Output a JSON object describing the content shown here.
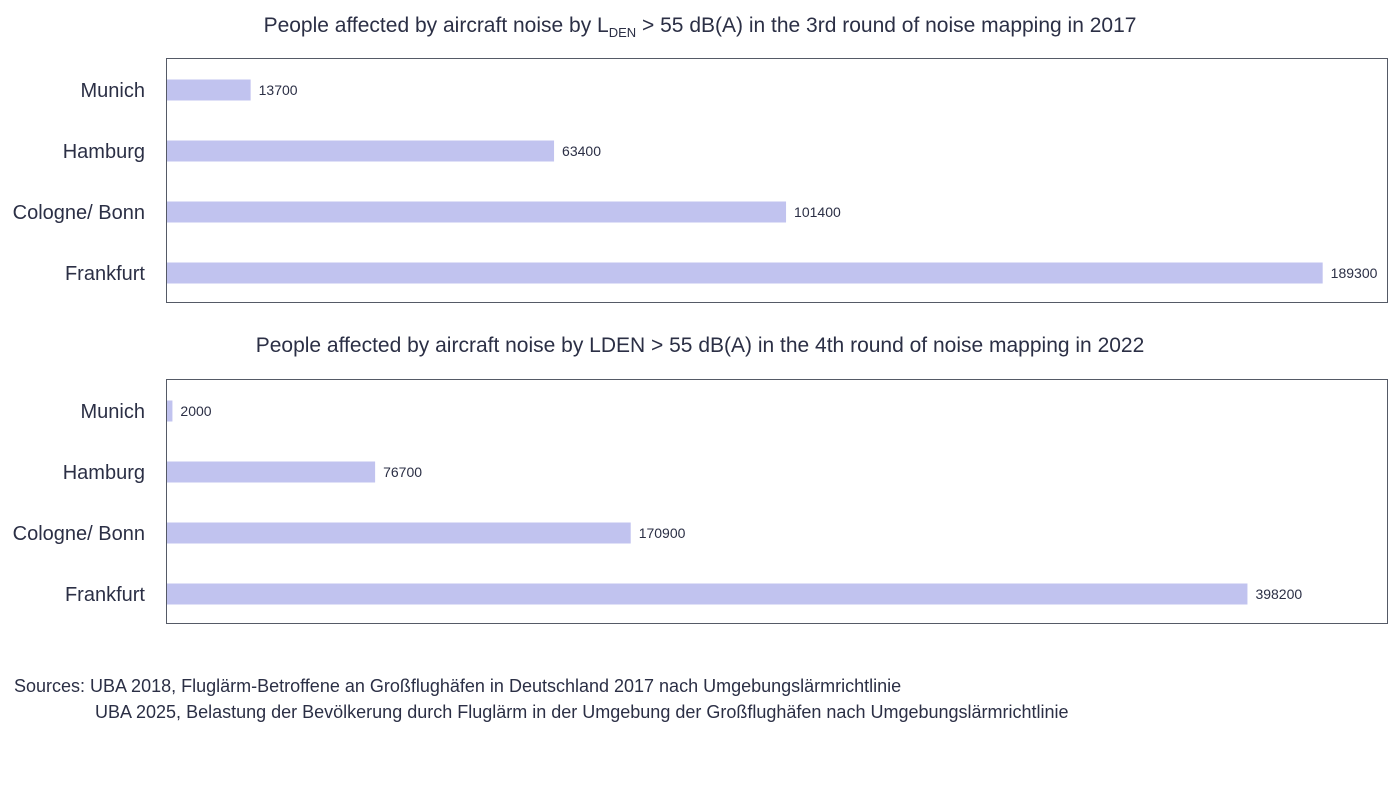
{
  "chart_data": [
    {
      "type": "bar",
      "orientation": "horizontal",
      "title_main": "People affected by aircraft noise by L",
      "title_sub": "DEN",
      "title_rest": " > 55 dB(A) in the 3rd round of noise mapping in 2017",
      "categories": [
        "Munich",
        "Hamburg",
        "Cologne/ Bonn",
        "Frankfurt"
      ],
      "values": [
        13700,
        63400,
        101400,
        189300
      ],
      "xlim": [
        0,
        200000
      ],
      "grid": false,
      "color": "#c1c3ef"
    },
    {
      "type": "bar",
      "orientation": "horizontal",
      "title": "People affected by aircraft noise by LDEN > 55 dB(A) in the 4th round of noise mapping in 2022",
      "categories": [
        "Munich",
        "Hamburg",
        "Cologne/ Bonn",
        "Frankfurt"
      ],
      "values": [
        2000,
        76700,
        170900,
        398200
      ],
      "xlim": [
        0,
        450000
      ],
      "grid": false,
      "color": "#c1c3ef"
    }
  ],
  "sources": {
    "line1": "Sources: UBA 2018, Fluglärm-Betroffene an Großflughäfen in Deutschland 2017 nach Umgebungslärmrichtlinie",
    "line2": "UBA 2025, Belastung der Bevölkerung durch Fluglärm in der Umgebung der Großflughäfen nach Umgebungslärmrichtlinie"
  }
}
